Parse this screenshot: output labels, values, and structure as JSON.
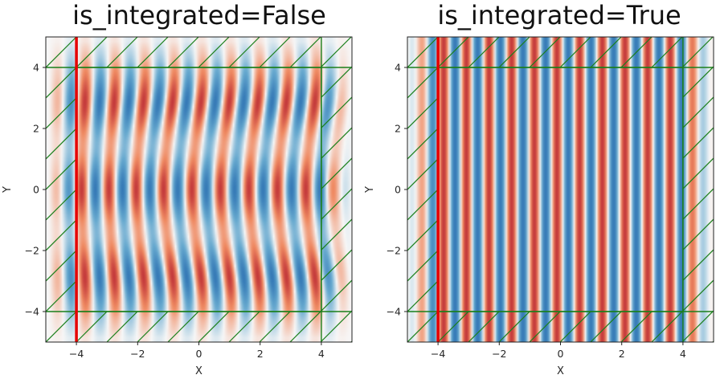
{
  "chart_data": [
    {
      "type": "heatmap",
      "title": "is_integrated=False",
      "xlabel": "X",
      "ylabel": "Y",
      "xlim": [
        -5,
        5
      ],
      "ylim": [
        -5,
        5
      ],
      "xticks": [
        -4,
        -2,
        0,
        2,
        4
      ],
      "yticks": [
        -4,
        -2,
        0,
        2,
        4
      ],
      "xtick_labels": [
        "−4",
        "−2",
        "0",
        "2",
        "4"
      ],
      "ytick_labels": [
        "−4",
        "−2",
        "0",
        "2",
        "4"
      ],
      "colormap": "RdBu",
      "field": {
        "pattern": "vertical wave fronts, curved near y=±4 (scattered)",
        "wavelength": 0.93,
        "source_line_x": -4,
        "fade_outside_region": true
      },
      "source_line": {
        "x": -4,
        "color": "#e60000"
      },
      "region_box": {
        "x": [
          -4,
          4
        ],
        "y": [
          -4,
          4
        ],
        "color": "#1a7f1a"
      },
      "hatch": "green diagonal hatching outside the box",
      "grid": false
    },
    {
      "type": "heatmap",
      "title": "is_integrated=True",
      "xlabel": "X",
      "ylabel": "Y",
      "xlim": [
        -5,
        5
      ],
      "ylim": [
        -5,
        5
      ],
      "xticks": [
        -4,
        -2,
        0,
        2,
        4
      ],
      "yticks": [
        -4,
        -2,
        0,
        2,
        4
      ],
      "xtick_labels": [
        "−4",
        "−2",
        "0",
        "2",
        "4"
      ],
      "ytick_labels": [
        "−4",
        "−2",
        "0",
        "2",
        "4"
      ],
      "colormap": "RdBu",
      "field": {
        "pattern": "straight vertical stripes",
        "wavelength": 0.74,
        "source_line_x": -4,
        "fade_outside_region": true
      },
      "source_line": {
        "x": -4,
        "color": "#e60000"
      },
      "region_box": {
        "x": [
          -4,
          4
        ],
        "y": [
          -4,
          4
        ],
        "color": "#1a7f1a"
      },
      "hatch": "green diagonal hatching outside the box",
      "grid": false
    }
  ]
}
